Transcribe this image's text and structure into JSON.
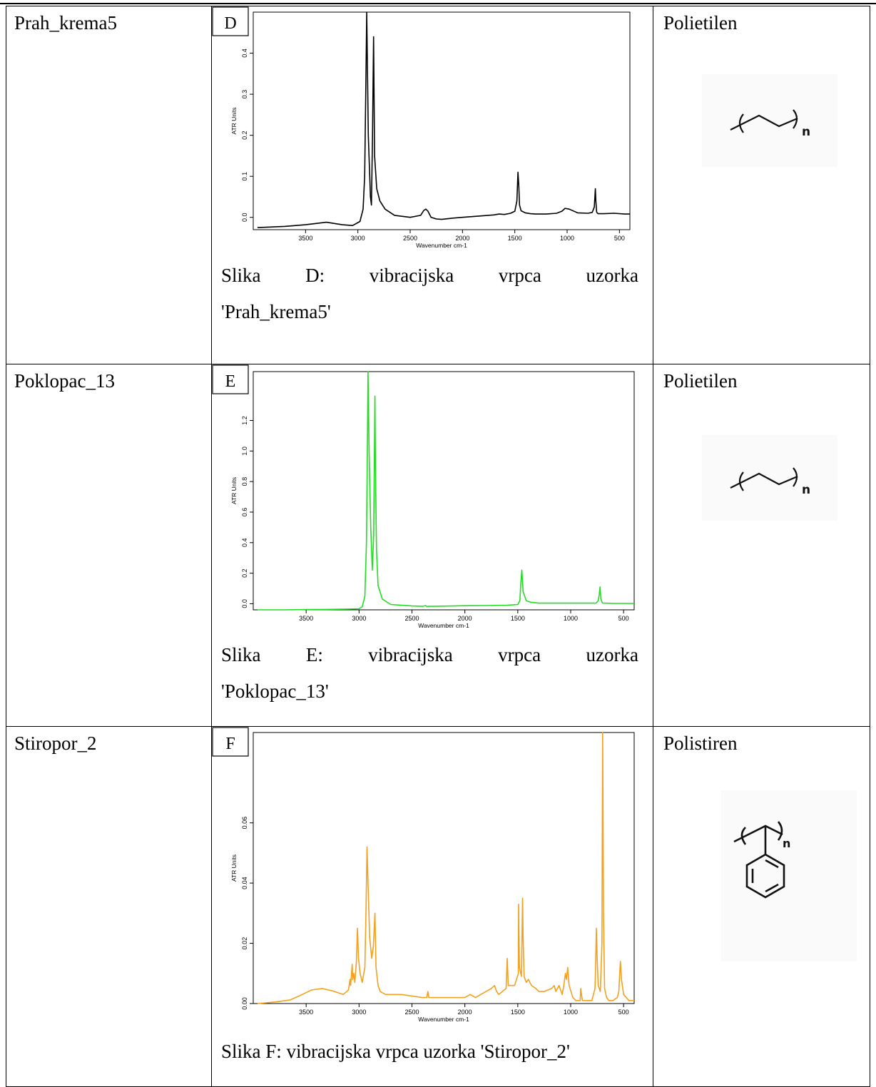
{
  "rows": [
    {
      "sample": "Prah_krema5",
      "polymer": "Polietilen",
      "caption_line1": "Slika D: vibracijska vrpca uzorka",
      "caption_line2": "'Prah_krema5'"
    },
    {
      "sample": "Poklopac_13",
      "polymer": "Polietilen",
      "caption_line1": "Slika E: vibracijska vrpca uzorka",
      "caption_line2": "'Poklopac_13'"
    },
    {
      "sample": "Stiropor_2",
      "polymer": "Polistiren",
      "caption_line1": "Slika F: vibracijska vrpca uzorka 'Stiropor_2'",
      "caption_line2": ""
    }
  ],
  "chart_data": [
    {
      "type": "line",
      "badge": "D",
      "color": "#000000",
      "xlabel": "Wavenumber cm-1",
      "ylabel": "ATR Units",
      "xlim": [
        4000,
        400
      ],
      "ylim": [
        -0.03,
        0.5
      ],
      "xticks": [
        3500,
        3000,
        2500,
        2000,
        1500,
        1000,
        500
      ],
      "yticks": [
        0.0,
        0.1,
        0.2,
        0.3,
        0.4
      ],
      "ytick_labels": [
        "0.0",
        "0.1",
        "0.2",
        "0.3",
        "0.4"
      ],
      "series": [
        {
          "x": [
            3960,
            3700,
            3500,
            3300,
            3150,
            3050,
            2980,
            2950,
            2935,
            2925,
            2915,
            2900,
            2880,
            2870,
            2860,
            2850,
            2840,
            2820,
            2790,
            2740,
            2650,
            2500,
            2400,
            2370,
            2350,
            2330,
            2300,
            2250,
            2200,
            2100,
            2000,
            1900,
            1800,
            1700,
            1650,
            1600,
            1540,
            1500,
            1480,
            1470,
            1462,
            1455,
            1440,
            1400,
            1350,
            1300,
            1200,
            1100,
            1050,
            1020,
            980,
            900,
            800,
            760,
            740,
            730,
            725,
            718,
            710,
            700,
            650,
            550,
            450,
            400
          ],
          "y": [
            -0.025,
            -0.022,
            -0.018,
            -0.012,
            -0.018,
            -0.02,
            -0.01,
            0.02,
            0.1,
            0.3,
            0.5,
            0.2,
            0.05,
            0.03,
            0.2,
            0.44,
            0.15,
            0.07,
            0.04,
            0.02,
            0.005,
            0.0,
            0.005,
            0.017,
            0.02,
            0.015,
            0.0,
            -0.004,
            -0.005,
            -0.002,
            0.0,
            0.002,
            0.004,
            0.006,
            0.008,
            0.007,
            0.01,
            0.015,
            0.04,
            0.11,
            0.08,
            0.03,
            0.016,
            0.011,
            0.009,
            0.008,
            0.008,
            0.01,
            0.015,
            0.022,
            0.02,
            0.011,
            0.01,
            0.012,
            0.025,
            0.07,
            0.04,
            0.013,
            0.01,
            0.009,
            0.009,
            0.01,
            0.008,
            0.008
          ]
        }
      ]
    },
    {
      "type": "line",
      "badge": "E",
      "color": "#22dd22",
      "xlabel": "Wavenumber cm-1",
      "ylabel": "ATR Units",
      "xlim": [
        4000,
        400
      ],
      "ylim": [
        -0.04,
        1.52
      ],
      "xticks": [
        3500,
        3000,
        2500,
        2000,
        1500,
        1000,
        500
      ],
      "yticks": [
        0.0,
        0.2,
        0.4,
        0.6,
        0.8,
        1.0,
        1.2
      ],
      "ytick_labels": [
        "0.0",
        "0.2",
        "0.4",
        "0.6",
        "0.8",
        "1.0",
        "1.2"
      ],
      "series": [
        {
          "x": [
            3960,
            3700,
            3500,
            3300,
            3100,
            3000,
            2970,
            2945,
            2930,
            2920,
            2915,
            2905,
            2890,
            2875,
            2862,
            2850,
            2845,
            2835,
            2820,
            2780,
            2700,
            2500,
            2400,
            2370,
            2360,
            2350,
            2300,
            2000,
            1800,
            1600,
            1500,
            1480,
            1472,
            1462,
            1450,
            1420,
            1380,
            1300,
            1100,
            900,
            760,
            740,
            730,
            722,
            715,
            700,
            600,
            500,
            400
          ],
          "y": [
            -0.04,
            -0.04,
            -0.038,
            -0.037,
            -0.035,
            -0.033,
            -0.02,
            0.05,
            0.4,
            1.1,
            1.52,
            1.0,
            0.5,
            0.22,
            0.45,
            1.36,
            0.9,
            0.35,
            0.12,
            0.03,
            -0.005,
            -0.015,
            -0.017,
            -0.012,
            -0.02,
            -0.017,
            -0.017,
            -0.013,
            -0.012,
            -0.01,
            -0.005,
            0.02,
            0.13,
            0.22,
            0.08,
            0.02,
            0.01,
            0.004,
            0.004,
            0.004,
            0.004,
            0.02,
            0.06,
            0.11,
            0.03,
            0.005,
            0.002,
            0.002,
            0.002
          ]
        }
      ]
    },
    {
      "type": "line",
      "badge": "F",
      "color": "#f4a020",
      "xlabel": "Wavenumber cm-1",
      "ylabel": "ATR Units",
      "xlim": [
        4000,
        400
      ],
      "ylim": [
        0.0,
        0.09
      ],
      "xticks": [
        3500,
        3000,
        2500,
        2000,
        1500,
        1000,
        500
      ],
      "yticks": [
        0.0,
        0.02,
        0.04,
        0.06
      ],
      "ytick_labels": [
        "0.00",
        "0.02",
        "0.04",
        "0.06"
      ],
      "series": [
        {
          "x": [
            3960,
            3800,
            3650,
            3550,
            3450,
            3350,
            3250,
            3150,
            3100,
            3085,
            3080,
            3065,
            3060,
            3050,
            3040,
            3025,
            3015,
            3005,
            2990,
            2970,
            2945,
            2935,
            2925,
            2915,
            2900,
            2880,
            2865,
            2850,
            2840,
            2820,
            2800,
            2750,
            2600,
            2400,
            2360,
            2350,
            2340,
            2300,
            2200,
            2150,
            2000,
            1950,
            1900,
            1800,
            1750,
            1720,
            1700,
            1680,
            1610,
            1600,
            1590,
            1560,
            1530,
            1495,
            1492,
            1485,
            1465,
            1455,
            1450,
            1440,
            1420,
            1400,
            1370,
            1330,
            1300,
            1250,
            1180,
            1155,
            1140,
            1110,
            1080,
            1065,
            1050,
            1040,
            1028,
            1015,
            980,
            950,
            910,
            905,
            890,
            840,
            800,
            770,
            765,
            757,
            750,
            740,
            720,
            705,
            698,
            690,
            680,
            660,
            640,
            600,
            560,
            545,
            538,
            530,
            520,
            500,
            450,
            400
          ],
          "y": [
            0.0,
            0.0005,
            0.0012,
            0.0028,
            0.0045,
            0.005,
            0.0042,
            0.003,
            0.0045,
            0.008,
            0.006,
            0.013,
            0.008,
            0.01,
            0.007,
            0.014,
            0.025,
            0.015,
            0.01,
            0.007,
            0.012,
            0.03,
            0.052,
            0.04,
            0.022,
            0.015,
            0.019,
            0.03,
            0.012,
            0.006,
            0.004,
            0.003,
            0.003,
            0.002,
            0.002,
            0.004,
            0.002,
            0.002,
            0.002,
            0.002,
            0.002,
            0.003,
            0.002,
            0.004,
            0.005,
            0.006,
            0.004,
            0.003,
            0.005,
            0.015,
            0.006,
            0.006,
            0.006,
            0.01,
            0.033,
            0.012,
            0.009,
            0.035,
            0.022,
            0.009,
            0.007,
            0.008,
            0.006,
            0.005,
            0.004,
            0.004,
            0.005,
            0.006,
            0.004,
            0.006,
            0.003,
            0.006,
            0.01,
            0.008,
            0.012,
            0.006,
            0.002,
            0.001,
            0.001,
            0.005,
            0.001,
            0.001,
            0.001,
            0.005,
            0.012,
            0.025,
            0.015,
            0.006,
            0.004,
            0.02,
            0.092,
            0.03,
            0.005,
            0.002,
            0.001,
            0.001,
            0.002,
            0.004,
            0.009,
            0.014,
            0.008,
            0.003,
            0.001,
            0.001
          ]
        }
      ]
    }
  ]
}
